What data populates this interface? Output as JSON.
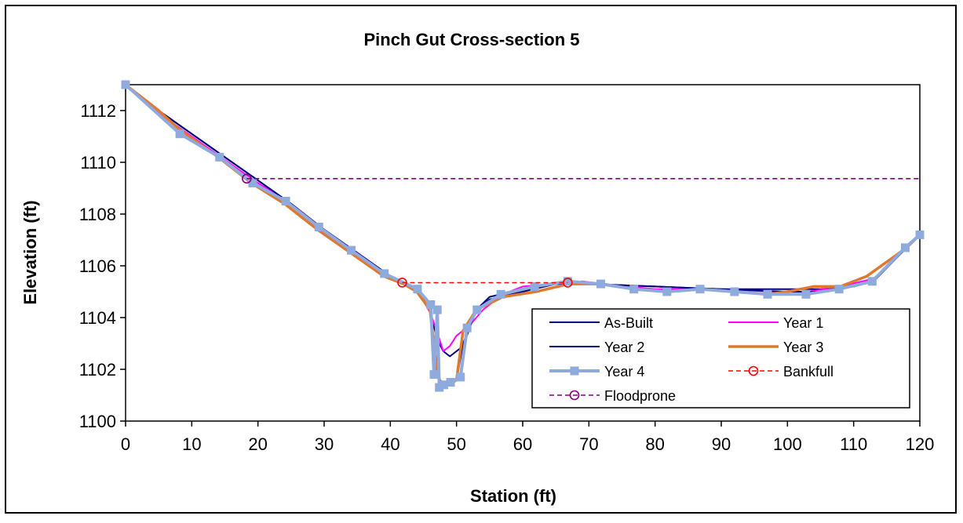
{
  "chart_data": {
    "type": "line",
    "title": "Pinch Gut Cross-section 5",
    "xlabel": "Station (ft)",
    "ylabel": "Elevation (ft)",
    "xlim": [
      0,
      120
    ],
    "ylim": [
      1100,
      1113
    ],
    "x_ticks": [
      "0",
      "10",
      "20",
      "30",
      "40",
      "50",
      "60",
      "70",
      "80",
      "90",
      "100",
      "110",
      "120"
    ],
    "y_ticks": [
      "1100",
      "1102",
      "1104",
      "1106",
      "1108",
      "1110",
      "1112"
    ],
    "grid": false,
    "legend_position": "bottom-right",
    "series": [
      {
        "name": "As-Built",
        "color": "#000080",
        "style": "solid",
        "marker": "none",
        "x": [
          0,
          5,
          10,
          15,
          20,
          25,
          30,
          35,
          40,
          44,
          46,
          47,
          48,
          49,
          51,
          53,
          55,
          60,
          65,
          70,
          80,
          90,
          100,
          105,
          110,
          113,
          118,
          120
        ],
        "y": [
          1113.0,
          1112.0,
          1111.1,
          1110.2,
          1109.3,
          1108.4,
          1107.4,
          1106.5,
          1105.6,
          1105.1,
          1104.3,
          1103.2,
          1102.7,
          1102.5,
          1102.9,
          1104.3,
          1104.8,
          1105.1,
          1105.3,
          1105.3,
          1105.2,
          1105.1,
          1105.1,
          1105.1,
          1105.2,
          1105.4,
          1106.7,
          1107.2
        ]
      },
      {
        "name": "Year 1",
        "color": "#ff00ff",
        "style": "solid",
        "marker": "none",
        "x": [
          0,
          5,
          10,
          15,
          20,
          25,
          30,
          35,
          40,
          44,
          46,
          47,
          48,
          49,
          50,
          52,
          54,
          57,
          60,
          65,
          69,
          72,
          80,
          90,
          98,
          103,
          108,
          113,
          118,
          120
        ],
        "y": [
          1113.0,
          1111.9,
          1111.0,
          1110.1,
          1109.2,
          1108.4,
          1107.4,
          1106.5,
          1105.6,
          1105.1,
          1104.2,
          1103.5,
          1102.7,
          1102.9,
          1103.3,
          1103.7,
          1104.3,
          1104.9,
          1105.2,
          1105.3,
          1105.4,
          1105.3,
          1105.1,
          1105.1,
          1105.0,
          1105.0,
          1105.2,
          1105.5,
          1106.7,
          1107.2
        ]
      },
      {
        "name": "Year 2",
        "color": "#000080",
        "style": "solid",
        "marker": "none",
        "x": [
          0,
          5,
          10,
          15,
          20,
          25,
          30,
          35,
          40,
          44,
          46,
          47,
          47.5,
          48,
          49,
          50,
          51,
          53,
          55,
          60,
          65,
          70,
          80,
          90,
          100,
          105,
          110,
          113,
          118,
          120
        ],
        "y": [
          1113.0,
          1112.0,
          1111.1,
          1110.2,
          1109.3,
          1108.4,
          1107.4,
          1106.5,
          1105.6,
          1105.1,
          1104.3,
          1102.3,
          1101.6,
          1101.4,
          1101.4,
          1101.6,
          1103.0,
          1104.3,
          1104.7,
          1105.0,
          1105.3,
          1105.3,
          1105.2,
          1105.1,
          1105.0,
          1105.0,
          1105.2,
          1105.4,
          1106.7,
          1107.2
        ]
      },
      {
        "name": "Year 3",
        "color": "#e07830",
        "style": "solid",
        "marker": "none",
        "x": [
          0,
          2,
          5,
          8,
          14,
          19,
          24,
          29,
          34,
          39,
          42,
          44,
          46,
          47,
          47.5,
          48,
          49,
          50,
          51,
          53,
          57,
          62,
          67,
          72,
          77,
          82,
          87,
          92,
          97,
          100,
          104,
          108,
          112,
          118,
          120
        ],
        "y": [
          1113.0,
          1112.6,
          1112.0,
          1111.3,
          1110.2,
          1109.2,
          1108.4,
          1107.4,
          1106.5,
          1105.6,
          1105.3,
          1105.0,
          1104.3,
          1102.0,
          1101.5,
          1101.4,
          1101.4,
          1101.6,
          1103.5,
          1104.3,
          1104.8,
          1105.0,
          1105.3,
          1105.3,
          1105.1,
          1105.0,
          1105.1,
          1105.0,
          1104.9,
          1105.0,
          1105.2,
          1105.2,
          1105.6,
          1106.7,
          1107.2
        ]
      },
      {
        "name": "Year 4",
        "color": "#8faadc",
        "style": "solid",
        "marker": "square",
        "x": [
          0,
          8.2,
          14.2,
          19.2,
          24.2,
          29.2,
          34.1,
          39.1,
          44.1,
          46.1,
          46.6,
          47.1,
          47.4,
          48.1,
          49.1,
          50.6,
          51.6,
          53.1,
          56.7,
          61.8,
          66.8,
          71.8,
          76.8,
          81.8,
          86.8,
          92.0,
          97.0,
          102.8,
          107.8,
          112.8,
          117.8,
          120
        ],
        "y": [
          1113.0,
          1111.1,
          1110.2,
          1109.2,
          1108.5,
          1107.5,
          1106.6,
          1105.7,
          1105.1,
          1104.5,
          1101.8,
          1104.3,
          1101.3,
          1101.4,
          1101.5,
          1101.7,
          1103.6,
          1104.3,
          1104.9,
          1105.2,
          1105.4,
          1105.3,
          1105.1,
          1105.0,
          1105.1,
          1105.0,
          1104.9,
          1104.9,
          1105.1,
          1105.4,
          1106.7,
          1107.2
        ]
      },
      {
        "name": "Bankfull",
        "color": "#ff0000",
        "style": "dashed",
        "marker": "circle",
        "x": [
          41.8,
          66.8
        ],
        "y": [
          1105.35,
          1105.35
        ]
      },
      {
        "name": "Floodprone",
        "color": "#800080",
        "style": "dashed",
        "marker": "circle",
        "x": [
          18.3,
          120
        ],
        "y": [
          1109.37,
          1109.37
        ]
      }
    ]
  }
}
